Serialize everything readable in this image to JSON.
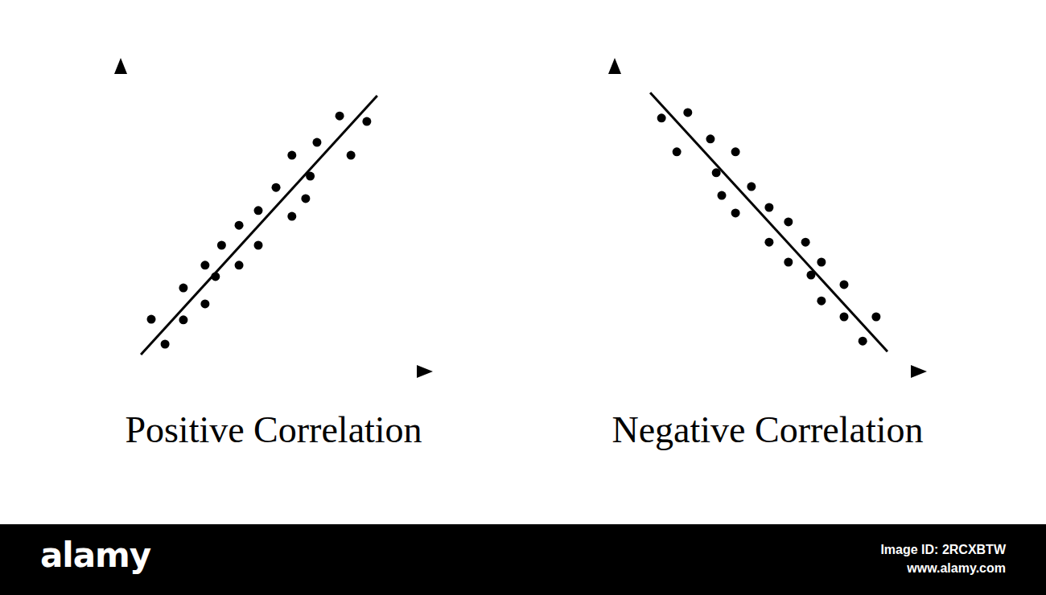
{
  "chart_data": [
    {
      "type": "scatter",
      "title": "Positive Correlation",
      "x": [
        1.0,
        1.45,
        2.05,
        2.05,
        2.76,
        2.76,
        3.1,
        3.3,
        3.87,
        3.87,
        4.5,
        4.5,
        5.08,
        5.6,
        5.6,
        6.05,
        6.2,
        6.42,
        7.16,
        7.53,
        8.05
      ],
      "values": [
        1.7,
        0.89,
        2.72,
        1.68,
        3.46,
        2.2,
        3.09,
        4.11,
        4.76,
        3.46,
        5.24,
        4.11,
        5.99,
        7.04,
        5.05,
        5.63,
        6.36,
        7.46,
        8.32,
        7.04,
        8.14
      ],
      "color": "#000000",
      "marker": "circle",
      "xlim": [
        0,
        10
      ],
      "ylim": [
        0,
        10
      ],
      "tick_labels": false,
      "trend_line": {
        "x": [
          0.66,
          8.39
        ],
        "y": [
          0.55,
          8.98
        ]
      }
    },
    {
      "type": "scatter",
      "title": "Negative Correlation",
      "x": [
        1.53,
        2.03,
        2.39,
        3.13,
        3.32,
        3.5,
        3.95,
        3.95,
        4.47,
        5.05,
        5.05,
        5.68,
        5.68,
        6.24,
        6.42,
        6.76,
        6.76,
        7.5,
        7.5,
        8.11,
        8.55
      ],
      "values": [
        8.25,
        7.15,
        8.43,
        7.57,
        6.47,
        5.73,
        7.15,
        5.16,
        6.02,
        5.34,
        4.21,
        4.87,
        3.56,
        4.21,
        3.14,
        3.56,
        2.3,
        2.83,
        1.78,
        0.99,
        1.78
      ],
      "color": "#000000",
      "marker": "circle",
      "xlim": [
        0,
        10
      ],
      "ylim": [
        0,
        10
      ],
      "tick_labels": false,
      "trend_line": {
        "x": [
          1.16,
          8.92
        ],
        "y": [
          9.08,
          0.65
        ]
      }
    }
  ],
  "footer": {
    "logo": "alamy",
    "image_id": "Image ID: 2RCXBTW",
    "url": "www.alamy.com"
  }
}
